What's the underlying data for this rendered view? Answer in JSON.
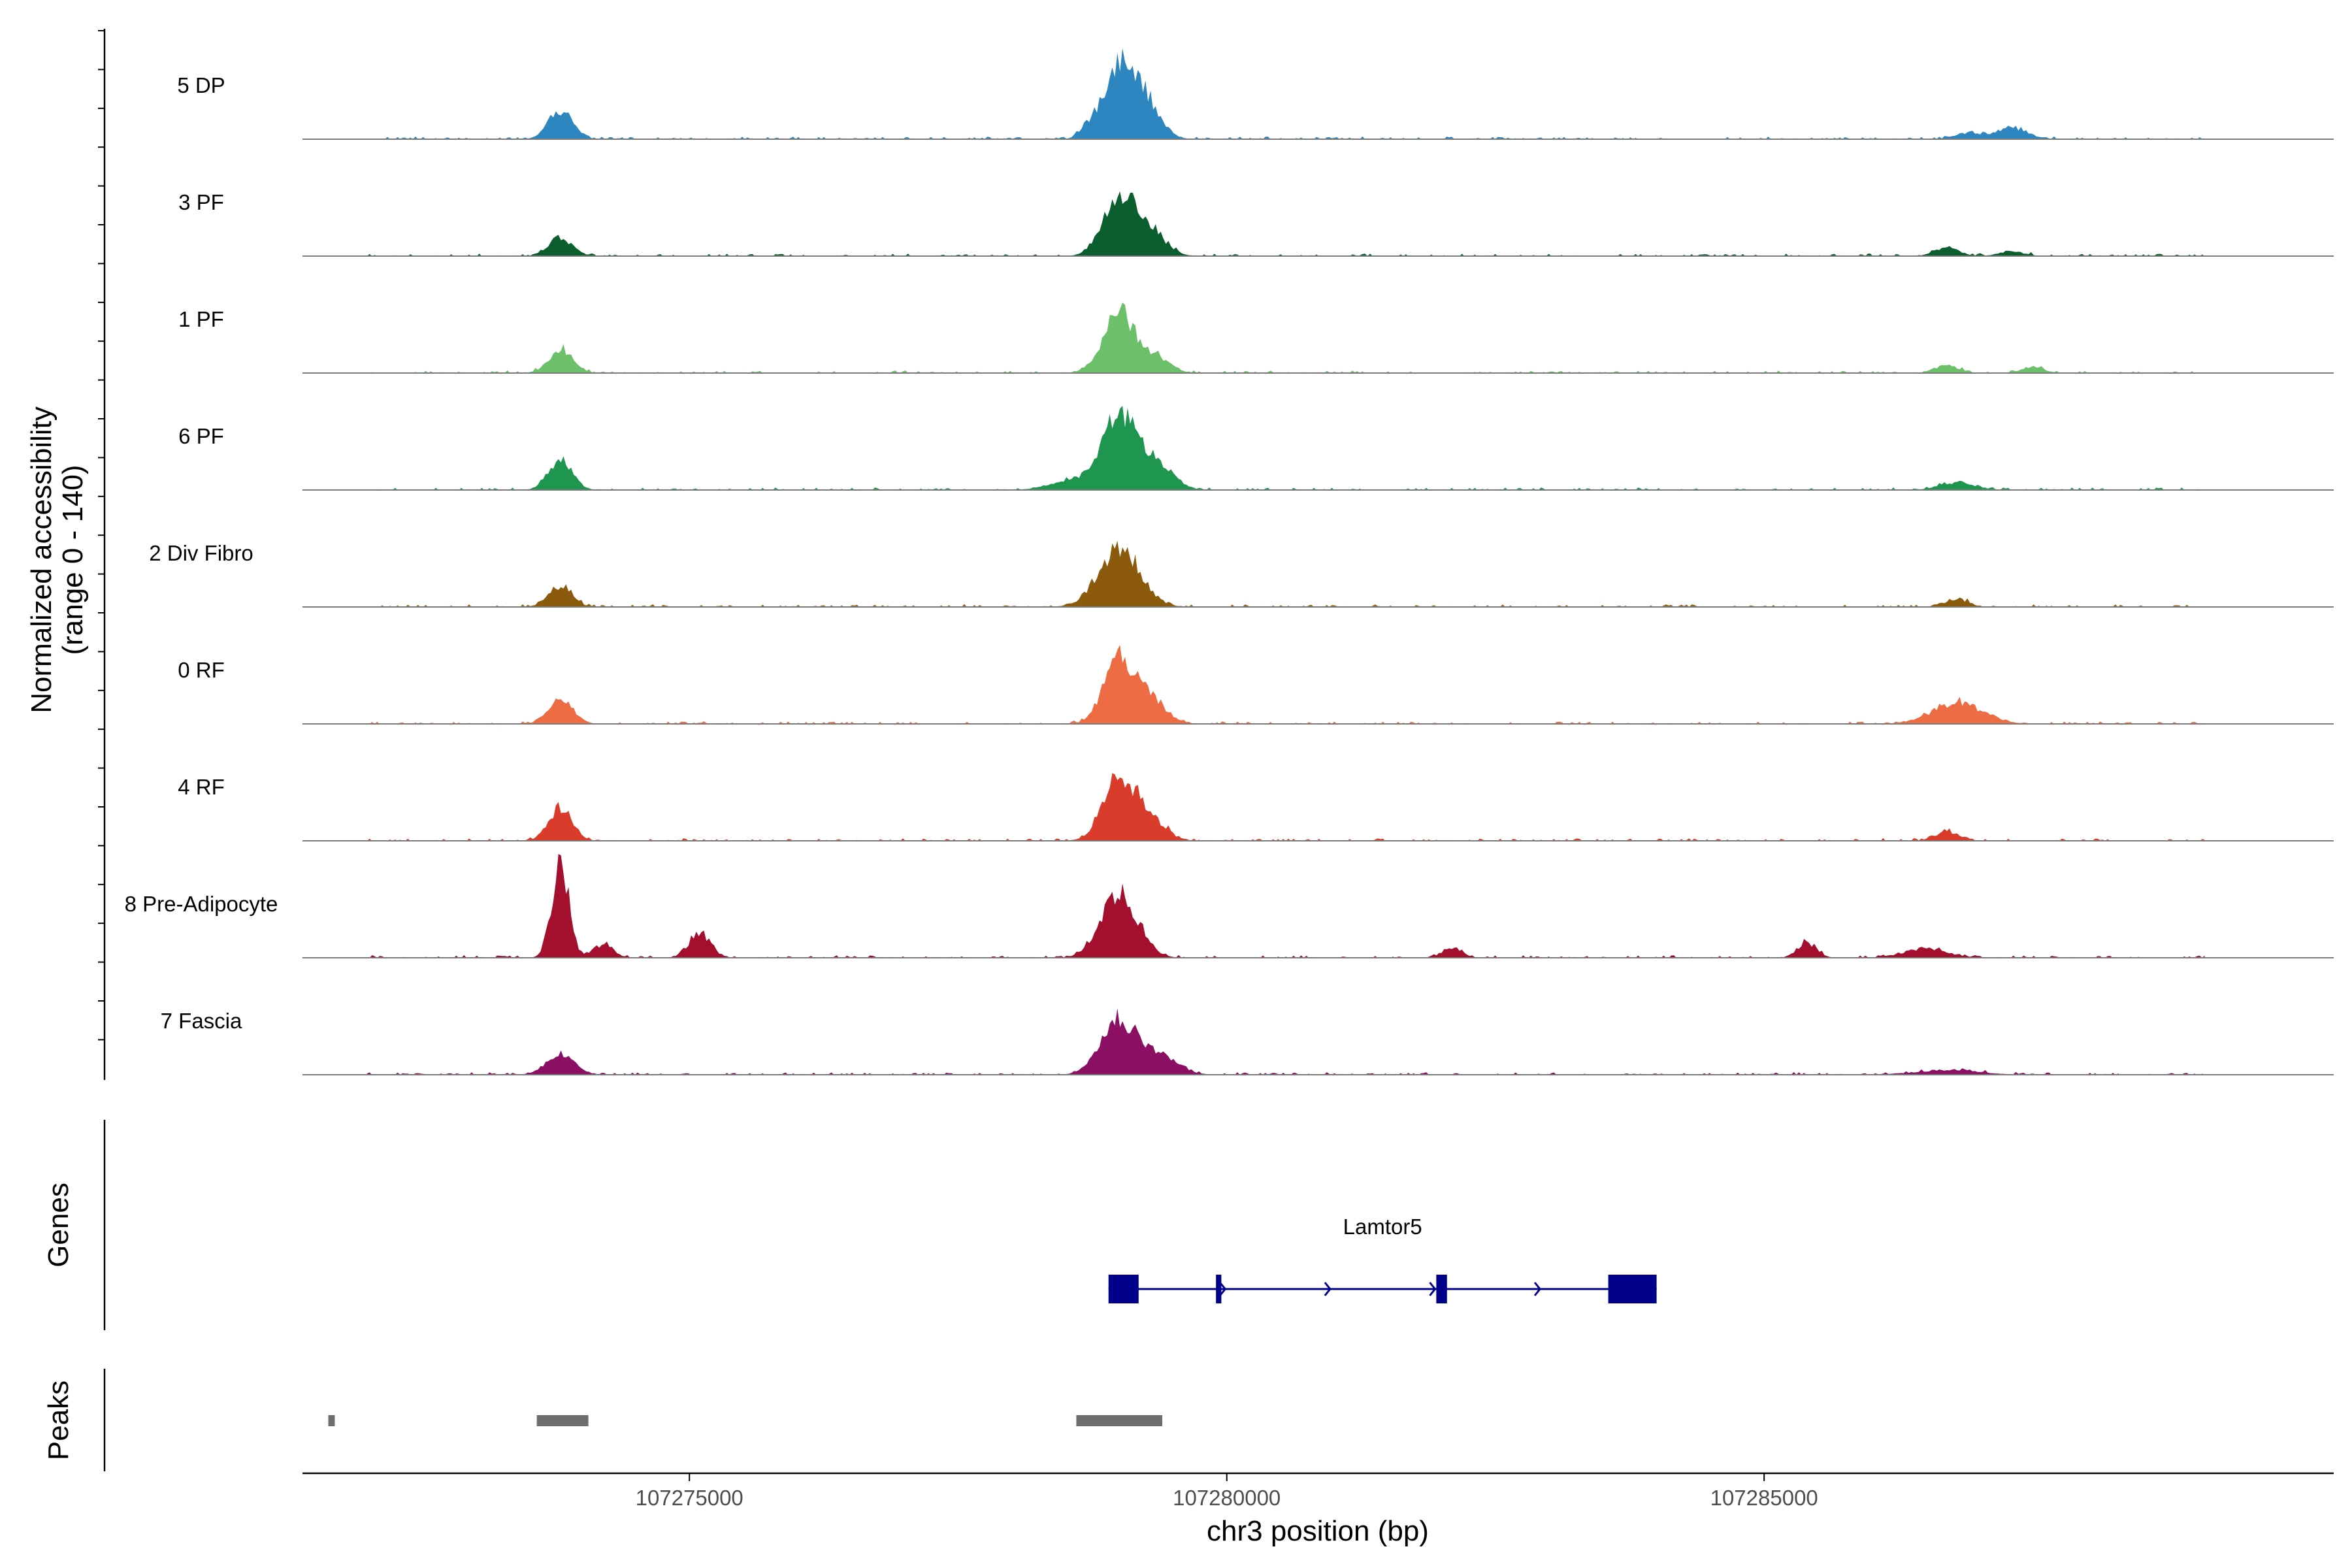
{
  "chart_data": {
    "type": "area",
    "title": "",
    "region": {
      "chromosome": "chr3",
      "x_start": 107271400,
      "x_end": 107290300
    },
    "xlabel": "chr3 position (bp)",
    "x_ticks": [
      107275000,
      107280000,
      107285000
    ],
    "x_tick_labels": [
      "107275000",
      "107280000",
      "107285000"
    ],
    "ylabel_line1": "Normalized accessibility",
    "ylabel_line2": "(range 0 - 140)",
    "ylim": [
      0,
      140
    ],
    "tracks": [
      {
        "name": "5 DP",
        "color": "#2E86C1",
        "peaks": [
          [
            107271700,
            6,
            60
          ],
          [
            107273800,
            38,
            110
          ],
          [
            107278700,
            8,
            70
          ],
          [
            107279000,
            100,
            150
          ],
          [
            107279250,
            40,
            140
          ],
          [
            107286900,
            8,
            120
          ],
          [
            107287300,
            14,
            150
          ]
        ]
      },
      {
        "name": "3 PF",
        "color": "#0B5E2E",
        "peaks": [
          [
            107273800,
            24,
            110
          ],
          [
            107279000,
            80,
            150
          ],
          [
            107279300,
            30,
            140
          ],
          [
            107286700,
            12,
            110
          ],
          [
            107287300,
            6,
            120
          ]
        ]
      },
      {
        "name": "1 PF",
        "color": "#6CC06A",
        "peaks": [
          [
            107273800,
            32,
            110
          ],
          [
            107279000,
            78,
            150
          ],
          [
            107279350,
            18,
            130
          ],
          [
            107286700,
            10,
            110
          ],
          [
            107287500,
            8,
            100
          ]
        ]
      },
      {
        "name": "6 PF",
        "color": "#1E9650",
        "peaks": [
          [
            107273800,
            38,
            110
          ],
          [
            107279000,
            92,
            160
          ],
          [
            107279350,
            35,
            150
          ],
          [
            107278600,
            12,
            220
          ],
          [
            107286800,
            10,
            160
          ]
        ]
      },
      {
        "name": "2 Div Fibro",
        "color": "#8B5A0D",
        "peaks": [
          [
            107273800,
            28,
            110
          ],
          [
            107279000,
            78,
            190
          ],
          [
            107286800,
            10,
            100
          ]
        ]
      },
      {
        "name": "0 RF",
        "color": "#EE6C44",
        "peaks": [
          [
            107273800,
            36,
            110
          ],
          [
            107279000,
            86,
            140
          ],
          [
            107279300,
            30,
            140
          ],
          [
            107286800,
            28,
            230
          ]
        ]
      },
      {
        "name": "4 RF",
        "color": "#D93C2A",
        "peaks": [
          [
            107273800,
            42,
            110
          ],
          [
            107279000,
            86,
            150
          ],
          [
            107279300,
            25,
            140
          ],
          [
            107286700,
            12,
            110
          ]
        ]
      },
      {
        "name": "8 Pre-Adipocyte",
        "color": "#A50F2E",
        "peaks": [
          [
            107273800,
            122,
            80
          ],
          [
            107279000,
            85,
            170
          ],
          [
            107275100,
            32,
            100
          ],
          [
            107274200,
            18,
            90
          ],
          [
            107282100,
            14,
            90
          ],
          [
            107285400,
            20,
            90
          ],
          [
            107286500,
            12,
            200
          ]
        ]
      },
      {
        "name": "7 Fascia",
        "color": "#8B1063",
        "peaks": [
          [
            107273800,
            28,
            130
          ],
          [
            107279000,
            72,
            170
          ],
          [
            107279400,
            22,
            160
          ],
          [
            107286700,
            6,
            300
          ]
        ]
      }
    ],
    "genes": [
      {
        "name": "Lamtor5",
        "strand": "+",
        "start": 107278900,
        "end": 107284000,
        "exons": [
          [
            107278900,
            107279180
          ],
          [
            107279900,
            107279950
          ],
          [
            107281950,
            107282050
          ],
          [
            107283550,
            107284000
          ]
        ]
      }
    ],
    "genes_track_label": "Genes",
    "peaks_track_label": "Peaks",
    "peak_regions": [
      [
        107271640,
        107271700
      ],
      [
        107273580,
        107274060
      ],
      [
        107278600,
        107279400
      ]
    ]
  }
}
